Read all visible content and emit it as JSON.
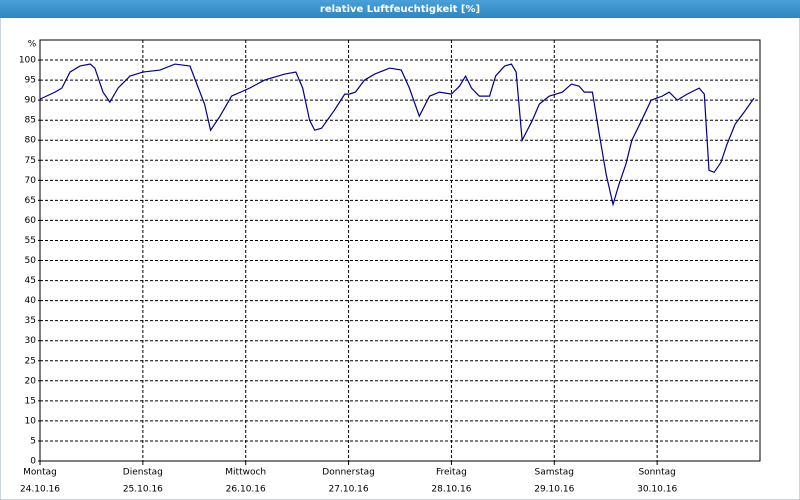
{
  "chart_data": {
    "type": "line",
    "title": "relative Luftfeuchtigkeit [%]",
    "y_label": "%",
    "xlim": [
      0,
      168
    ],
    "ylim": [
      0,
      105
    ],
    "xticks": [
      {
        "value": 0,
        "label": "Montag"
      },
      {
        "value": 24,
        "label": "Dienstag"
      },
      {
        "value": 48,
        "label": "Mittwoch"
      },
      {
        "value": 72,
        "label": "Donnerstag"
      },
      {
        "value": 96,
        "label": "Freitag"
      },
      {
        "value": 120,
        "label": "Samstag"
      },
      {
        "value": 144,
        "label": "Sonntag"
      }
    ],
    "xtick_dates": [
      "24.10.16",
      "25.10.16",
      "26.10.16",
      "27.10.16",
      "28.10.16",
      "29.10.16",
      "30.10.16"
    ],
    "yticks": [
      0,
      5,
      10,
      15,
      20,
      25,
      30,
      35,
      40,
      45,
      50,
      55,
      60,
      65,
      70,
      75,
      80,
      85,
      90,
      95,
      100
    ],
    "grid": true,
    "series": [
      {
        "name": "relative Luftfeuchtigkeit",
        "color": "#00008b",
        "x": [
          0,
          3.5,
          5.1,
          7.0,
          9.3,
          11.7,
          12.8,
          14.7,
          16.3,
          18.2,
          21.0,
          24.0,
          28.0,
          31.5,
          35.0,
          36.6,
          38.4,
          39.8,
          42.0,
          44.7,
          48.9,
          52.4,
          57.1,
          59.7,
          61.3,
          62.9,
          64.1,
          65.7,
          68.7,
          71.1,
          72.2,
          73.6,
          75.7,
          78.1,
          81.6,
          84.3,
          86.2,
          88.5,
          90.9,
          93.2,
          96.0,
          97.9,
          99.3,
          100.7,
          102.5,
          104.9,
          106.3,
          108.4,
          110.0,
          111.1,
          112.5,
          114.9,
          116.5,
          118.8,
          121.9,
          124.0,
          125.8,
          127.0,
          128.9,
          130.5,
          132.1,
          133.7,
          135.1,
          136.7,
          138.1,
          140.4,
          142.6,
          145.2,
          146.8,
          148.7,
          151.0,
          153.8,
          155.0,
          156.1,
          157.3,
          158.9,
          160.3,
          162.2,
          164.3,
          166.6
        ],
        "values": [
          90.25,
          92,
          93,
          97,
          98.5,
          99,
          98,
          92,
          89.5,
          93,
          96,
          97,
          97.5,
          99,
          98.5,
          94,
          89,
          82.5,
          86,
          91,
          93,
          95,
          96.5,
          97,
          93,
          85,
          82.5,
          83,
          87.5,
          91.5,
          91.5,
          92,
          95,
          96.5,
          98,
          97.5,
          93,
          86,
          91,
          92,
          91.5,
          93.5,
          96,
          93,
          91,
          91,
          96,
          98.5,
          99,
          97,
          80,
          85,
          89,
          91,
          92,
          94,
          93.5,
          92,
          92,
          81.5,
          71.5,
          64,
          69,
          74,
          80,
          85,
          90,
          91,
          92,
          90,
          91.5,
          93,
          91.5,
          72.5,
          72,
          74.5,
          79,
          84,
          87,
          90.5
        ]
      }
    ]
  }
}
